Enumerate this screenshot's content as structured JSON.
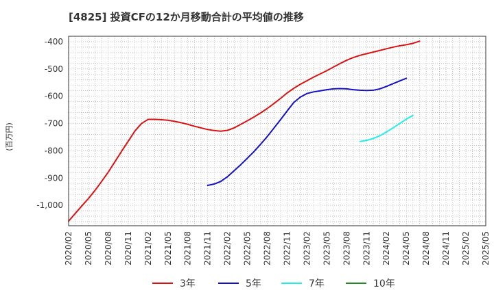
{
  "chart_data": {
    "type": "line",
    "title": "[4825]  投資CFの12か月移動合計の平均値の推移",
    "ylabel": "(百万円)",
    "xlabel": "",
    "ylim": [
      -1075,
      -380
    ],
    "yticks": [
      -400,
      -500,
      -600,
      -700,
      -800,
      -900,
      -1000
    ],
    "ytick_labels": [
      "-400",
      "-500",
      "-600",
      "-700",
      "-800",
      "-900",
      "-1,000"
    ],
    "xticks": [
      "2020/02",
      "2020/05",
      "2020/08",
      "2020/11",
      "2021/02",
      "2021/05",
      "2021/08",
      "2021/11",
      "2022/02",
      "2022/05",
      "2022/08",
      "2022/11",
      "2023/02",
      "2023/05",
      "2023/08",
      "2023/11",
      "2024/02",
      "2024/05",
      "2024/08",
      "2024/11",
      "2025/02",
      "2025/05"
    ],
    "x_start": "2020/02",
    "x_end": "2025/05",
    "grid": true,
    "legend_position": "bottom",
    "series": [
      {
        "name": "3年",
        "color": "#dd1111",
        "start": "2020/02",
        "values": [
          -1058,
          -1030,
          -1002,
          -975,
          -945,
          -912,
          -878,
          -840,
          -802,
          -765,
          -728,
          -700,
          -685,
          -685,
          -686,
          -688,
          -692,
          -697,
          -703,
          -710,
          -716,
          -722,
          -726,
          -728,
          -725,
          -716,
          -703,
          -690,
          -676,
          -661,
          -645,
          -627,
          -608,
          -588,
          -571,
          -556,
          -543,
          -530,
          -518,
          -506,
          -493,
          -480,
          -468,
          -458,
          -450,
          -444,
          -438,
          -432,
          -426,
          -420,
          -415,
          -411,
          -406,
          -398
        ]
      },
      {
        "name": "5年",
        "color": "#1111cc",
        "start": "2021/11",
        "values": [
          -927,
          -922,
          -912,
          -895,
          -873,
          -851,
          -827,
          -803,
          -776,
          -748,
          -717,
          -686,
          -654,
          -623,
          -603,
          -590,
          -584,
          -580,
          -576,
          -573,
          -572,
          -573,
          -576,
          -578,
          -579,
          -578,
          -573,
          -564,
          -554,
          -544,
          -534
        ]
      },
      {
        "name": "7年",
        "color": "#22eeee",
        "start": "2023/10",
        "values": [
          -766,
          -762,
          -755,
          -745,
          -731,
          -716,
          -700,
          -684,
          -670
        ]
      },
      {
        "name": "10年",
        "color": "#228b22",
        "start": "",
        "values": []
      }
    ]
  }
}
